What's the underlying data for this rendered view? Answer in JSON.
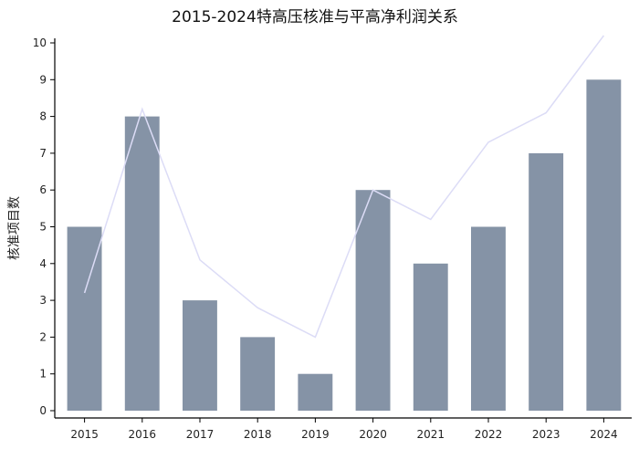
{
  "chart_data": {
    "type": "bar",
    "title": "2015-2024特高压核准与平高净利润关系",
    "xlabel": "",
    "ylabel": "核准项目数",
    "categories": [
      "2015",
      "2016",
      "2017",
      "2018",
      "2019",
      "2020",
      "2021",
      "2022",
      "2023",
      "2024"
    ],
    "series": [
      {
        "type": "bar",
        "values": [
          5,
          8,
          3,
          2,
          1,
          6,
          4,
          5,
          7,
          9
        ],
        "color": "#8593a6"
      },
      {
        "type": "line",
        "values": [
          3.2,
          8.2,
          4.1,
          2.8,
          2.0,
          6.0,
          5.2,
          7.3,
          8.1,
          10.2
        ],
        "color": "#dcdcf6"
      }
    ],
    "ylim": [
      0,
      10
    ],
    "yticks": [
      "0",
      "1",
      "2",
      "3",
      "4",
      "5",
      "6",
      "7",
      "8",
      "9",
      "10"
    ],
    "grid": false,
    "legend": "none"
  }
}
